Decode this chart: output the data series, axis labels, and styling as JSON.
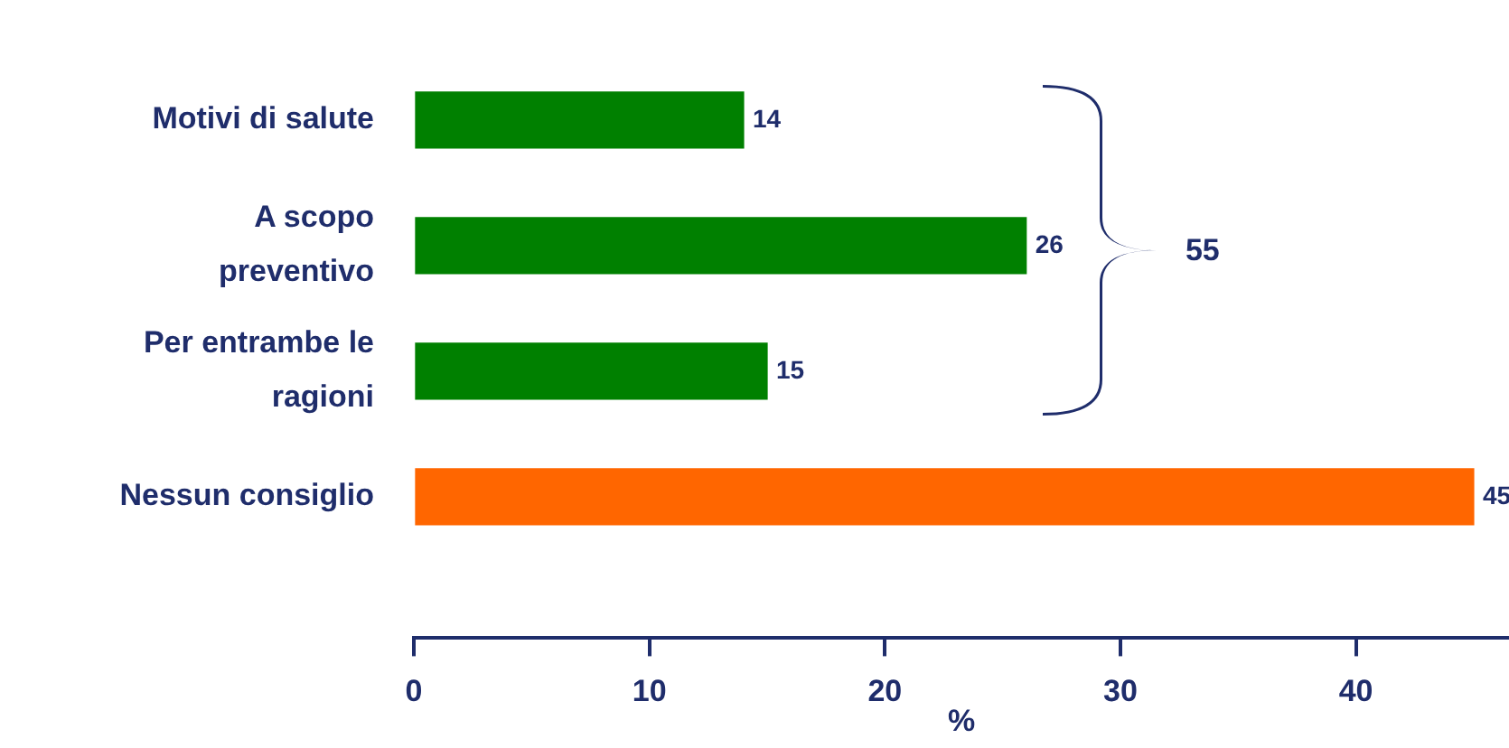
{
  "chart_data": {
    "type": "bar",
    "orientation": "horizontal",
    "xlabel": "%",
    "categories": [
      "Motivi di salute",
      "A scopo preventivo",
      "Per entrambe le ragioni",
      "Nessun consiglio"
    ],
    "values": [
      14,
      26,
      15,
      45
    ],
    "colors": [
      "#008000",
      "#008000",
      "#008000",
      "#ff6600"
    ],
    "xlim": [
      0,
      46.5
    ],
    "xticks": [
      0,
      10,
      20,
      30,
      40
    ],
    "grid": false,
    "legend": false,
    "data_labels": true,
    "annotations": [
      "55"
    ]
  }
}
